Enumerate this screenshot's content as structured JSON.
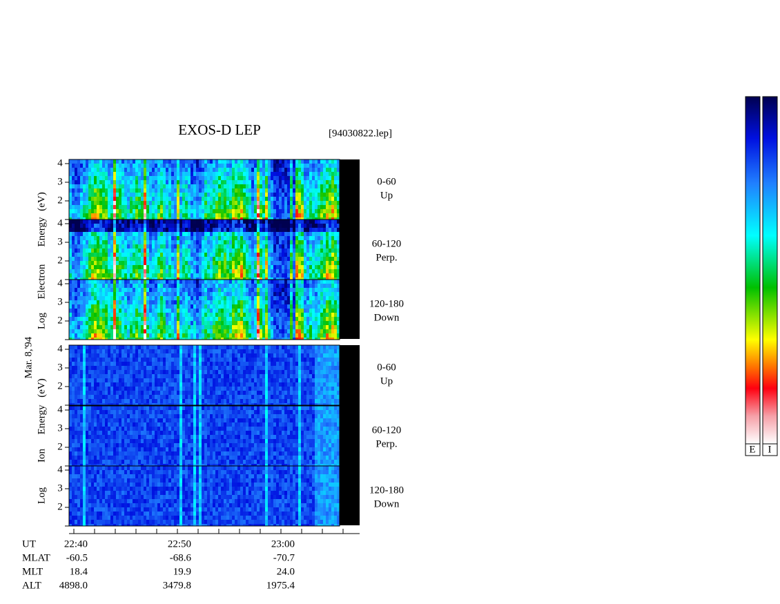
{
  "header": {
    "title": "EXOS-D LEP",
    "file": "[94030822.lep]"
  },
  "date": "Mar. 8,'94",
  "electron_label": [
    "Log",
    "Electron",
    "Energy",
    "(eV)"
  ],
  "ion_label": [
    "Log",
    "Ion",
    "Energy",
    "(eV)"
  ],
  "panels": [
    {
      "pitch": "0-60",
      "direction": "Up",
      "yticks": [
        "4",
        "3",
        "2"
      ]
    },
    {
      "pitch": "60-120",
      "direction": "Perp.",
      "yticks": [
        "4",
        "3",
        "2"
      ]
    },
    {
      "pitch": "120-180",
      "direction": "Down",
      "yticks": [
        "4",
        "3",
        "2"
      ]
    },
    {
      "pitch": "0-60",
      "direction": "Up",
      "yticks": [
        "4",
        "3",
        "2"
      ]
    },
    {
      "pitch": "60-120",
      "direction": "Perp.",
      "yticks": [
        "4",
        "3",
        "2"
      ]
    },
    {
      "pitch": "120-180",
      "direction": "Down",
      "yticks": [
        "4",
        "3",
        "2"
      ]
    }
  ],
  "footer": {
    "rows": [
      {
        "name": "UT",
        "values": [
          "22:40",
          "22:50",
          "23:00"
        ]
      },
      {
        "name": "MLAT",
        "values": [
          "-60.5",
          "-68.6",
          "-70.7"
        ]
      },
      {
        "name": "MLT",
        "values": [
          "18.4",
          "19.9",
          "24.0"
        ]
      },
      {
        "name": "ALT",
        "values": [
          "4898.0",
          "3479.8",
          "1975.4"
        ]
      }
    ]
  },
  "colorbars": [
    "E",
    "I"
  ]
}
